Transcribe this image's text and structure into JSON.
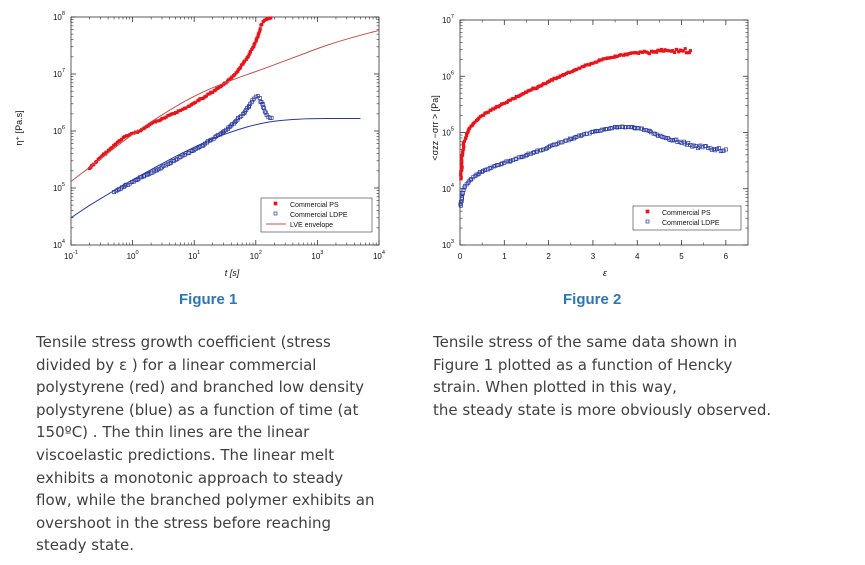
{
  "figures": [
    {
      "title": "Figure 1"
    },
    {
      "title": "Figure 2"
    }
  ],
  "captions": [
    {
      "lines": [
        "Tensile stress growth coefficient (stress",
        "divided by ε ) for a linear commercial",
        "polystyrene (red) and branched low density",
        "polystyrene (blue) as a function of time (at",
        "150ºC) . The thin lines are the linear",
        "viscoelastic predictions. The linear melt",
        "exhibits a monotonic approach to steady",
        "flow, while the branched polymer exhibits an",
        "overshoot in the stress before reaching",
        "steady state."
      ]
    },
    {
      "lines": [
        "Tensile stress of the same data shown in",
        "Figure 1 plotted as a function of Hencky",
        "strain. When plotted in this way,",
        "the steady state is more obviously observed."
      ]
    }
  ],
  "chart_data": [
    {
      "type": "scatter",
      "xlabel": "t [s]",
      "ylabel": "η⁺ [Pa.s]",
      "xscale": "log",
      "yscale": "log",
      "xlim": [
        0.1,
        10000
      ],
      "ylim": [
        10000,
        100000000
      ],
      "xticks": [
        0.1,
        1,
        10,
        100,
        1000,
        10000
      ],
      "xtick_labels": [
        {
          "b": "10",
          "e": "-1"
        },
        {
          "b": "10",
          "e": "0"
        },
        {
          "b": "10",
          "e": "1"
        },
        {
          "b": "10",
          "e": "2"
        },
        {
          "b": "10",
          "e": "3"
        },
        {
          "b": "10",
          "e": "4"
        }
      ],
      "yticks": [
        10000,
        100000,
        1000000,
        10000000,
        100000000
      ],
      "ytick_labels": [
        {
          "b": "10",
          "e": "4"
        },
        {
          "b": "10",
          "e": "5"
        },
        {
          "b": "10",
          "e": "6"
        },
        {
          "b": "10",
          "e": "7"
        },
        {
          "b": "10",
          "e": "8"
        }
      ],
      "legend_position": "bottom-right",
      "legend": [
        {
          "label": "Commercial PS",
          "color": "#e8141c",
          "marker": "filled-square"
        },
        {
          "label": "Commercial LDPE",
          "color": "#2a3a9c",
          "marker": "open-square"
        },
        {
          "label": "LVE envelope",
          "color": "#c0504d",
          "marker": "line"
        }
      ],
      "series": [
        {
          "name": "Commercial PS",
          "kind": "points",
          "color": "#e8141c",
          "x": [
            0.2,
            0.3,
            0.45,
            0.6,
            0.75,
            0.9,
            1.05,
            1.2,
            1.4,
            1.7,
            2.0,
            2.5,
            3.0,
            3.5,
            4.0,
            5.0,
            6.0,
            7.0,
            8.0,
            9.0,
            10,
            12,
            15,
            18,
            22,
            27,
            33,
            40,
            48,
            55,
            62,
            70,
            78,
            86,
            94,
            102,
            110,
            118,
            125,
            132,
            140,
            148,
            156,
            165,
            175
          ],
          "y": [
            220000.0,
            340000.0,
            500000.0,
            660000.0,
            800000.0,
            860000.0,
            920000.0,
            950000.0,
            1050000.0,
            1200000.0,
            1350000.0,
            1500000.0,
            1650000.0,
            1750000.0,
            1900000.0,
            2100000.0,
            2300000.0,
            2500000.0,
            2700000.0,
            2900000.0,
            3100000.0,
            3500000.0,
            4000000.0,
            4500000.0,
            5200000.0,
            6000000.0,
            7000000.0,
            8500000.0,
            10500000.0,
            12500000.0,
            15000000.0,
            18000000.0,
            22000000.0,
            27000000.0,
            33000000.0,
            40000000.0,
            50000000.0,
            62000000.0,
            74000000.0,
            83000000.0,
            88000000.0,
            91000000.0,
            93000000.0,
            95000000.0,
            96000000.0
          ]
        },
        {
          "name": "Commercial LDPE",
          "kind": "points",
          "color": "#2a3a9c",
          "x": [
            0.5,
            0.6,
            0.75,
            0.9,
            1.05,
            1.2,
            1.4,
            1.7,
            2.0,
            2.5,
            3.0,
            3.5,
            4.0,
            5.0,
            6.0,
            7.0,
            8.0,
            10,
            12,
            15,
            18,
            22,
            27,
            33,
            40,
            48,
            55,
            62,
            70,
            78,
            86,
            94,
            100,
            108,
            116,
            124,
            132,
            140,
            150,
            160,
            170,
            180
          ],
          "y": [
            85000.0,
            95000.0,
            110000.0,
            120000.0,
            130000.0,
            140000.0,
            155000.0,
            170000.0,
            185000.0,
            205000.0,
            230000.0,
            250000.0,
            270000.0,
            310000.0,
            350000.0,
            380000.0,
            410000.0,
            460000.0,
            520000.0,
            600000.0,
            680000.0,
            780000.0,
            900000.0,
            1050000.0,
            1250000.0,
            1500000.0,
            1750000.0,
            2000000.0,
            2350000.0,
            2750000.0,
            3200000.0,
            3700000.0,
            4000000.0,
            4100000.0,
            3800000.0,
            3200000.0,
            2600000.0,
            2200000.0,
            1900000.0,
            1750000.0,
            1700000.0,
            1700000.0
          ]
        },
        {
          "name": "LVE envelope",
          "kind": "line",
          "color": "#c0504d",
          "x": [
            0.1,
            0.2,
            0.5,
            1,
            2,
            5,
            10,
            20,
            50,
            100,
            200,
            500,
            1000,
            2000,
            5000,
            10000
          ],
          "y": [
            130000.0,
            230000.0,
            500000.0,
            880000.0,
            1450000.0,
            2700000.0,
            4100000.0,
            5800000.0,
            8500000.0,
            11000000.0,
            14500000.0,
            21000000.0,
            28000000.0,
            36000000.0,
            48000000.0,
            58000000.0
          ]
        },
        {
          "name": "",
          "kind": "line",
          "color": "#2a3a9c",
          "x": [
            0.1,
            0.2,
            0.5,
            1,
            2,
            5,
            10,
            20,
            50,
            100,
            200,
            500,
            1000,
            2000,
            5000
          ],
          "y": [
            30000.0,
            50000.0,
            90000.0,
            140000.0,
            210000.0,
            360000.0,
            520000.0,
            740000.0,
            1050000.0,
            1300000.0,
            1500000.0,
            1620000.0,
            1650000.0,
            1660000.0,
            1660000.0
          ]
        }
      ]
    },
    {
      "type": "scatter",
      "xlabel": "ε",
      "ylabel": "<σzz −σrr > [Pa]",
      "xscale": "linear",
      "yscale": "log",
      "xlim": [
        0,
        6.5
      ],
      "ylim": [
        1000,
        10000000
      ],
      "xticks": [
        0,
        1,
        2,
        3,
        4,
        5,
        6
      ],
      "xtick_labels": [
        {
          "b": "0",
          "e": ""
        },
        {
          "b": "1",
          "e": ""
        },
        {
          "b": "2",
          "e": ""
        },
        {
          "b": "3",
          "e": ""
        },
        {
          "b": "4",
          "e": ""
        },
        {
          "b": "5",
          "e": ""
        },
        {
          "b": "6",
          "e": ""
        }
      ],
      "yticks": [
        1000,
        10000,
        100000,
        1000000,
        10000000
      ],
      "ytick_labels": [
        {
          "b": "10",
          "e": "3"
        },
        {
          "b": "10",
          "e": "4"
        },
        {
          "b": "10",
          "e": "5"
        },
        {
          "b": "10",
          "e": "6"
        },
        {
          "b": "10",
          "e": "7"
        }
      ],
      "legend_position": "bottom-right",
      "legend": [
        {
          "label": "Commercial PS",
          "color": "#e8141c",
          "marker": "filled-square"
        },
        {
          "label": "Commercial LDPE",
          "color": "#2a3a9c",
          "marker": "open-square"
        }
      ],
      "series": [
        {
          "name": "Commercial PS",
          "kind": "points",
          "color": "#e8141c",
          "x": [
            0.02,
            0.04,
            0.06,
            0.08,
            0.1,
            0.15,
            0.2,
            0.25,
            0.3,
            0.4,
            0.5,
            0.6,
            0.7,
            0.8,
            0.9,
            1.0,
            1.2,
            1.4,
            1.6,
            1.8,
            2.0,
            2.2,
            2.4,
            2.6,
            2.8,
            3.0,
            3.2,
            3.4,
            3.6,
            3.8,
            4.0,
            4.2,
            4.4,
            4.6,
            4.8,
            5.0,
            5.2
          ],
          "y": [
            15000.0,
            30000.0,
            45000.0,
            58000.0,
            70000.0,
            95000.0,
            115000.0,
            130000.0,
            145000.0,
            170000.0,
            200000.0,
            225000.0,
            250000.0,
            275000.0,
            300000.0,
            330000.0,
            400000.0,
            480000.0,
            570000.0,
            670000.0,
            800000.0,
            950000.0,
            1120000.0,
            1300000.0,
            1500000.0,
            1700000.0,
            1950000.0,
            2150000.0,
            2350000.0,
            2500000.0,
            2600000.0,
            2700000.0,
            2750000.0,
            2800000.0,
            2850000.0,
            2850000.0,
            2850000.0
          ]
        },
        {
          "name": "Commercial LDPE",
          "kind": "points",
          "color": "#2a3a9c",
          "x": [
            0.02,
            0.04,
            0.06,
            0.08,
            0.1,
            0.15,
            0.2,
            0.3,
            0.4,
            0.5,
            0.6,
            0.8,
            1.0,
            1.2,
            1.4,
            1.6,
            1.8,
            2.0,
            2.2,
            2.4,
            2.6,
            2.8,
            3.0,
            3.2,
            3.4,
            3.6,
            3.8,
            4.0,
            4.2,
            4.4,
            4.6,
            4.8,
            5.0,
            5.2,
            5.4,
            5.6,
            5.8,
            6.0
          ],
          "y": [
            5000.0,
            7000.0,
            8500.0,
            9500.0,
            10500.0,
            12000.0,
            13500.0,
            16000.0,
            18000.0,
            20000.0,
            22000.0,
            25500.0,
            29000.0,
            32500.0,
            37000.0,
            42000.0,
            48000.0,
            55000.0,
            63000.0,
            72000.0,
            82000.0,
            93000.0,
            103000.0,
            112000.0,
            120000.0,
            125000.0,
            125000.0,
            120000.0,
            110000.0,
            95000.0,
            82000.0,
            72000.0,
            65000.0,
            60000.0,
            56000.0,
            53000.0,
            51000.0,
            50000.0
          ]
        }
      ]
    }
  ]
}
